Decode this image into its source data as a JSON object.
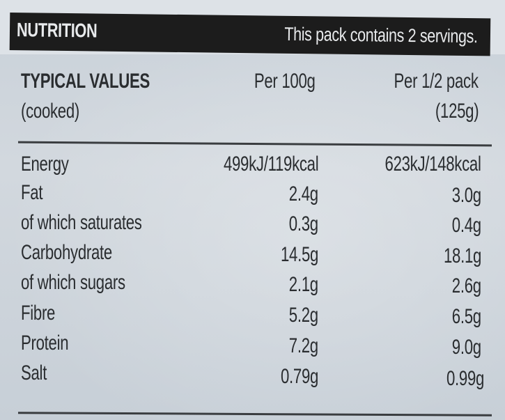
{
  "header": {
    "title": "NUTRITION",
    "servings": "This pack contains 2 servings."
  },
  "columns": {
    "label_line1": "TYPICAL VALUES",
    "label_line2": "(cooked)",
    "per100": "Per 100g",
    "perhalf_line1": "Per 1/2 pack",
    "perhalf_line2": "(125g)"
  },
  "rows": [
    {
      "name": "Energy",
      "per100": "499kJ/119kcal",
      "perhalf": "623kJ/148kcal"
    },
    {
      "name": "Fat",
      "per100": "2.4g",
      "perhalf": "3.0g"
    },
    {
      "name": "of which saturates",
      "per100": "0.3g",
      "perhalf": "0.4g"
    },
    {
      "name": "Carbohydrate",
      "per100": "14.5g",
      "perhalf": "18.1g"
    },
    {
      "name": "of which sugars",
      "per100": "2.1g",
      "perhalf": "2.6g"
    },
    {
      "name": "Fibre",
      "per100": "5.2g",
      "perhalf": "6.5g"
    },
    {
      "name": "Protein",
      "per100": "7.2g",
      "perhalf": "9.0g"
    },
    {
      "name": "Salt",
      "per100": "0.79g",
      "perhalf": "0.99g"
    }
  ]
}
